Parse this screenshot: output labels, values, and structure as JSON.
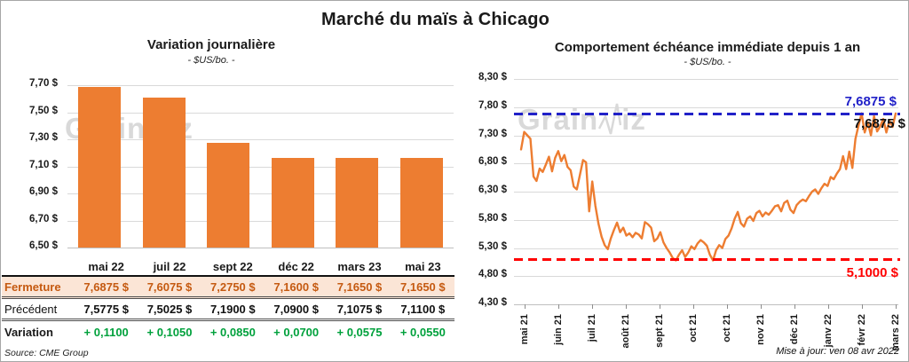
{
  "page": {
    "title": "Marché du maïs à Chicago",
    "source": "Source: CME Group",
    "updated": "Mise à jour: ven 08 avr 2022",
    "watermark": {
      "full": "GrainWiz",
      "pre": "Grain",
      "post": "iz"
    }
  },
  "colors": {
    "orange": "#ED7D31",
    "blue": "#2121C8",
    "red": "#FF0000",
    "green": "#00A13C",
    "brown": "#C55A11",
    "peach": "#FBE5D6",
    "grid": "#D9D9D9",
    "watermark": "#D9D9D9"
  },
  "table": {
    "rows": [
      {
        "key": "close",
        "label": "Fermeture",
        "values": [
          "7,6875  $",
          "7,6075  $",
          "7,2750  $",
          "7,1600  $",
          "7,1650  $",
          "7,1650  $"
        ]
      },
      {
        "key": "prev",
        "label": "Précédent",
        "values": [
          "7,5775  $",
          "7,5025  $",
          "7,1900  $",
          "7,0900  $",
          "7,1075  $",
          "7,1100  $"
        ]
      },
      {
        "key": "var",
        "label": "Variation",
        "values": [
          "+ 0,1100",
          "+ 0,1050",
          "+ 0,0850",
          "+ 0,0700",
          "+ 0,0575",
          "+ 0,0550"
        ]
      }
    ]
  },
  "chart_data": [
    {
      "type": "bar",
      "title": "Variation  journalière",
      "subtitle": "- $US/bo. -",
      "categories": [
        "mai 22",
        "juil 22",
        "sept 22",
        "déc 22",
        "mars 23",
        "mai 23"
      ],
      "values": [
        7.6875,
        7.6075,
        7.275,
        7.16,
        7.165,
        7.165
      ],
      "xlabel": "",
      "ylabel": "",
      "ylim": [
        6.5,
        7.7
      ],
      "y_ticks": [
        "7,70 $",
        "7,50 $",
        "7,30 $",
        "7,10 $",
        "6,90 $",
        "6,70 $",
        "6,50 $"
      ],
      "y_tick_values": [
        7.7,
        7.5,
        7.3,
        7.1,
        6.9,
        6.7,
        6.5
      ],
      "bar_color": "#ED7D31",
      "grid": true,
      "legend": "none"
    },
    {
      "type": "line",
      "title": "Comportement  échéance immédiate  depuis 1 an",
      "subtitle": "- $US/bo. -",
      "x_tick_labels": [
        "mai 21",
        "juin 21",
        "juil 21",
        "août 21",
        "sept 21",
        "oct 21",
        "oct 21",
        "nov 21",
        "déc 21",
        "janv 22",
        "févr 22",
        "mars 22"
      ],
      "values": [
        7.05,
        7.36,
        7.3,
        7.24,
        6.57,
        6.49,
        6.71,
        6.65,
        6.78,
        6.92,
        6.66,
        6.9,
        7.02,
        6.84,
        6.95,
        6.74,
        6.68,
        6.39,
        6.34,
        6.6,
        6.86,
        6.82,
        5.95,
        6.48,
        6.05,
        5.73,
        5.5,
        5.35,
        5.28,
        5.47,
        5.62,
        5.75,
        5.58,
        5.66,
        5.52,
        5.56,
        5.49,
        5.57,
        5.54,
        5.47,
        5.76,
        5.72,
        5.66,
        5.42,
        5.47,
        5.58,
        5.4,
        5.3,
        5.22,
        5.12,
        5.08,
        5.18,
        5.26,
        5.14,
        5.22,
        5.33,
        5.28,
        5.38,
        5.44,
        5.4,
        5.34,
        5.18,
        5.08,
        5.26,
        5.35,
        5.3,
        5.46,
        5.52,
        5.65,
        5.82,
        5.94,
        5.74,
        5.68,
        5.82,
        5.86,
        5.78,
        5.92,
        5.96,
        5.86,
        5.93,
        5.89,
        5.96,
        6.04,
        6.06,
        5.95,
        6.1,
        6.14,
        5.98,
        5.92,
        6.06,
        6.12,
        6.16,
        6.13,
        6.22,
        6.3,
        6.34,
        6.26,
        6.36,
        6.44,
        6.4,
        6.56,
        6.52,
        6.62,
        6.7,
        6.93,
        6.7,
        7.01,
        6.72,
        7.24,
        7.47,
        7.69,
        7.35,
        7.53,
        7.3,
        7.64,
        7.37,
        7.46,
        7.59,
        7.35,
        7.56,
        7.45,
        7.6875
      ],
      "xlabel": "",
      "ylabel": "",
      "ylim": [
        4.3,
        8.3
      ],
      "y_ticks": [
        "8,30 $",
        "7,80 $",
        "7,30 $",
        "6,80 $",
        "6,30 $",
        "5,80 $",
        "5,30 $",
        "4,80 $",
        "4,30 $"
      ],
      "y_tick_values": [
        8.3,
        7.8,
        7.3,
        6.8,
        6.3,
        5.8,
        5.3,
        4.8,
        4.3
      ],
      "line_color": "#ED7D31",
      "grid": true,
      "legend": "none",
      "reference_lines": [
        {
          "name": "close-reference-line",
          "value": 7.6875,
          "label": "7,6875 $",
          "color": "#2121C8",
          "style": "dashed"
        },
        {
          "name": "support-reference-line",
          "value": 5.1,
          "label": "5,1000 $",
          "color": "#FF0000",
          "style": "dashed"
        }
      ],
      "last_value_label": "7,6875 $"
    }
  ]
}
